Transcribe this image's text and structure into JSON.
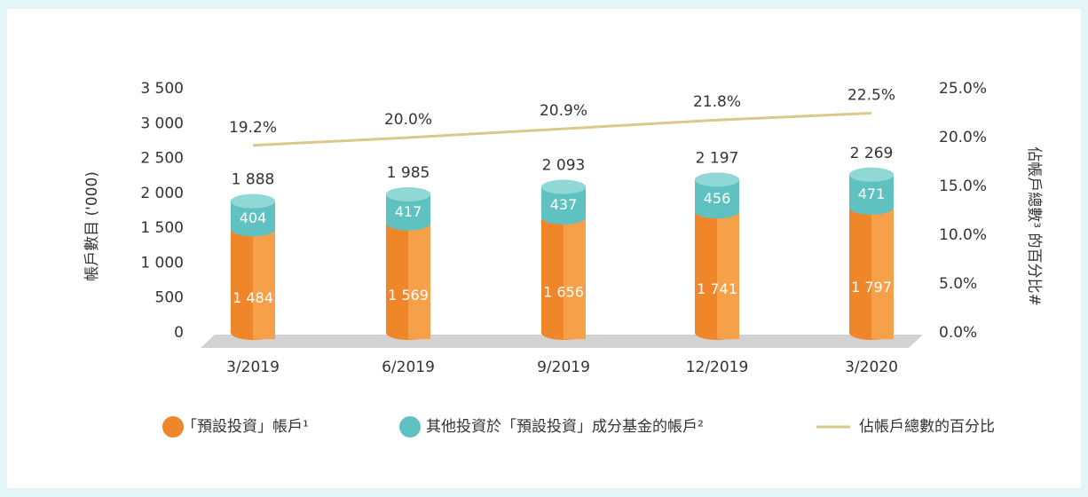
{
  "chart_data": {
    "type": "bar",
    "categories": [
      "3/2019",
      "6/2019",
      "9/2019",
      "12/2019",
      "3/2020"
    ],
    "y_label": "帳戶數目 ('000)",
    "y2_label": "佔帳戶總數³ 的百分比#",
    "series": [
      {
        "name": "「預設投資」帳戶¹",
        "color": "#f0862a",
        "values": [
          1484,
          1569,
          1656,
          1741,
          1797
        ],
        "value_labels": [
          "1 484",
          "1 569",
          "1 656",
          "1 741",
          "1 797"
        ]
      },
      {
        "name": "其他投資於「預設投資」成分基金的帳戶²",
        "color": "#5fc2c0",
        "values": [
          404,
          417,
          437,
          456,
          471
        ]
      },
      {
        "name": "佔帳戶總數的百分比",
        "type": "line",
        "axis": "y2",
        "color": "#d9c98a",
        "values": [
          19.2,
          20.0,
          20.9,
          21.8,
          22.5
        ],
        "value_labels": [
          "19.2%",
          "20.0%",
          "20.9%",
          "21.8%",
          "22.5%"
        ]
      }
    ],
    "total_labels": [
      "1 888",
      "1 985",
      "2 093",
      "2 197",
      "2 269"
    ],
    "ylim": [
      0,
      3500
    ],
    "yticks": [
      0,
      500,
      {
        "value": 1000,
        "label": "1 000"
      },
      {
        "value": 1500,
        "label": "1 500"
      },
      {
        "value": 2000,
        "label": "2 000"
      },
      {
        "value": 2500,
        "label": "2 500"
      },
      {
        "value": 3000,
        "label": "3 000"
      },
      {
        "value": 3500,
        "label": "3 500"
      }
    ],
    "y2lim": [
      0,
      25
    ],
    "y2ticks": [
      {
        "value": 0,
        "label": "0.0%"
      },
      {
        "value": 5,
        "label": "5.0%"
      },
      {
        "value": 10,
        "label": "10.0%"
      },
      {
        "value": 15,
        "label": "15.0%"
      },
      {
        "value": 20,
        "label": "20.0%"
      },
      {
        "value": 25,
        "label": "25.0%"
      }
    ]
  }
}
